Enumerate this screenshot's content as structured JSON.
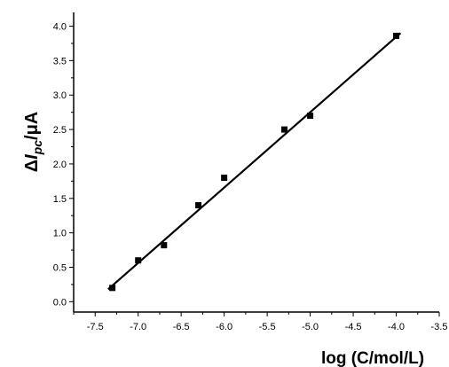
{
  "chart_data": {
    "type": "scatter",
    "title": "",
    "xlabel": "log (C/mol/L)",
    "ylabel": {
      "prefix": "Δ",
      "symbol": "I",
      "subscript": "pc",
      "suffix": "/μA"
    },
    "xlim": [
      -7.75,
      -3.5
    ],
    "ylim": [
      -0.15,
      4.2
    ],
    "xticks": [
      -7.5,
      -7.0,
      -6.5,
      -6.0,
      -5.5,
      -5.0,
      -4.5,
      -4.0,
      -3.5
    ],
    "xtick_labels": [
      "-7.5",
      "-7.0",
      "-6.5",
      "-6.0",
      "-5.5",
      "-5.0",
      "-4.5",
      "-4.0",
      "-3.5"
    ],
    "yticks": [
      0.0,
      0.5,
      1.0,
      1.5,
      2.0,
      2.5,
      3.0,
      3.5,
      4.0
    ],
    "ytick_labels": [
      "0.0",
      "0.5",
      "1.0",
      "1.5",
      "2.0",
      "2.5",
      "3.0",
      "3.5",
      "4.0"
    ],
    "grid": false,
    "series": [
      {
        "type": "scatter",
        "marker": "square",
        "color": "#000000",
        "x": [
          -7.3,
          -7.0,
          -6.7,
          -6.3,
          -6.0,
          -5.3,
          -5.0,
          -4.0
        ],
        "y": [
          0.2,
          0.6,
          0.82,
          1.4,
          1.8,
          2.5,
          2.7,
          3.86
        ]
      },
      {
        "type": "line",
        "color": "#000000",
        "x": [
          -7.35,
          -3.95
        ],
        "y": [
          0.18,
          3.9
        ]
      }
    ]
  }
}
